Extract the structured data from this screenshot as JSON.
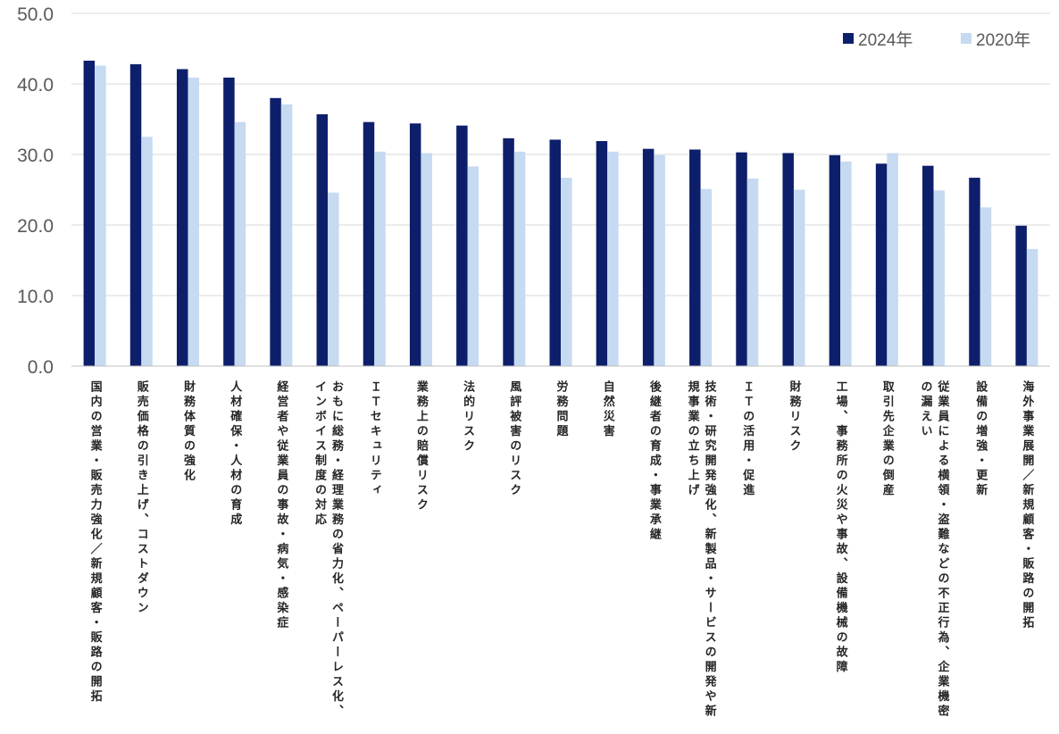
{
  "chart_data": {
    "type": "bar",
    "categories": [
      "国内の営業・販売力強化／新規顧客・販路の開拓",
      "販売価格の引き上げ、コストダウン",
      "財務体質の強化",
      "人材確保・人材の育成",
      "経営者や従業員の事故・病気・感染症",
      "おもに総務・経理業務の省力化、ペーパーレス化、インボイス制度の対応",
      "ＩＴセキュリティ",
      "業務上の賠償リスク",
      "法的リスク",
      "風評被害のリスク",
      "労務問題",
      "自然災害",
      "後継者の育成・事業承継",
      "技術・研究開発強化、新製品・サービスの開発や新規事業の立ち上げ",
      "ＩＴの活用・促進",
      "財務リスク",
      "工場、事務所の火災や事故、設備機械の故障",
      "取引先企業の倒産",
      "従業員による横領・盗難などの不正行為、企業機密の漏えい",
      "設備の増強・更新",
      "海外事業展開／新規顧客・販路の開拓"
    ],
    "series": [
      {
        "name": "2024年",
        "color": "#0d1f6b",
        "values": [
          43.3,
          42.8,
          42.1,
          40.9,
          38.0,
          35.7,
          34.6,
          34.4,
          34.1,
          32.3,
          32.1,
          31.9,
          30.8,
          30.7,
          30.3,
          30.2,
          29.9,
          28.7,
          28.4,
          26.7,
          19.9
        ]
      },
      {
        "name": "2020年",
        "color": "#c6daf1",
        "values": [
          42.6,
          32.5,
          40.9,
          34.6,
          37.1,
          24.6,
          30.4,
          30.2,
          28.3,
          30.4,
          26.7,
          30.4,
          29.9,
          25.1,
          26.6,
          25.0,
          29.0,
          30.2,
          24.9,
          22.5,
          16.6
        ]
      }
    ],
    "y_tick_labels": [
      "0.0",
      "10.0",
      "20.0",
      "30.0",
      "40.0",
      "50.0"
    ],
    "ylim": [
      0,
      50
    ],
    "grid": true,
    "legend_position": "top-right",
    "title": "",
    "xlabel": "",
    "ylabel": ""
  }
}
